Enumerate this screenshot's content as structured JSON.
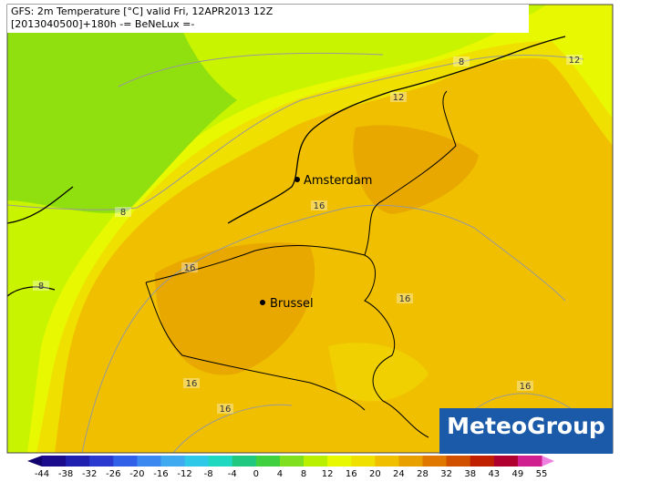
{
  "header": {
    "line1": "GFS: 2m Temperature [°C] valid Fri, 12APR2013 12Z",
    "line2": "[2013040500]+180h  -= BeNeLux =-"
  },
  "cities": [
    {
      "label": "Amsterdam"
    },
    {
      "label": "Brussel"
    }
  ],
  "contour_labels": [
    "8",
    "12",
    "12",
    "8",
    "16",
    "16",
    "8",
    "16",
    "16",
    "16",
    "16"
  ],
  "logo": "MeteoGroup",
  "colorbar": {
    "labels": [
      -44,
      -38,
      -32,
      -26,
      -20,
      -16,
      -12,
      -8,
      -4,
      0,
      4,
      8,
      12,
      16,
      20,
      24,
      28,
      32,
      38,
      43,
      49,
      55
    ],
    "colors": [
      "#1a0a8c",
      "#2020b0",
      "#2a3ad0",
      "#3060e8",
      "#3a88f0",
      "#40aaf0",
      "#30c8e8",
      "#20d8c0",
      "#20c880",
      "#40d040",
      "#80e020",
      "#b8f000",
      "#e8f800",
      "#f0e000",
      "#f0c000",
      "#e8a000",
      "#e07800",
      "#d05000",
      "#c02000",
      "#b00030",
      "#d02090"
    ]
  }
}
